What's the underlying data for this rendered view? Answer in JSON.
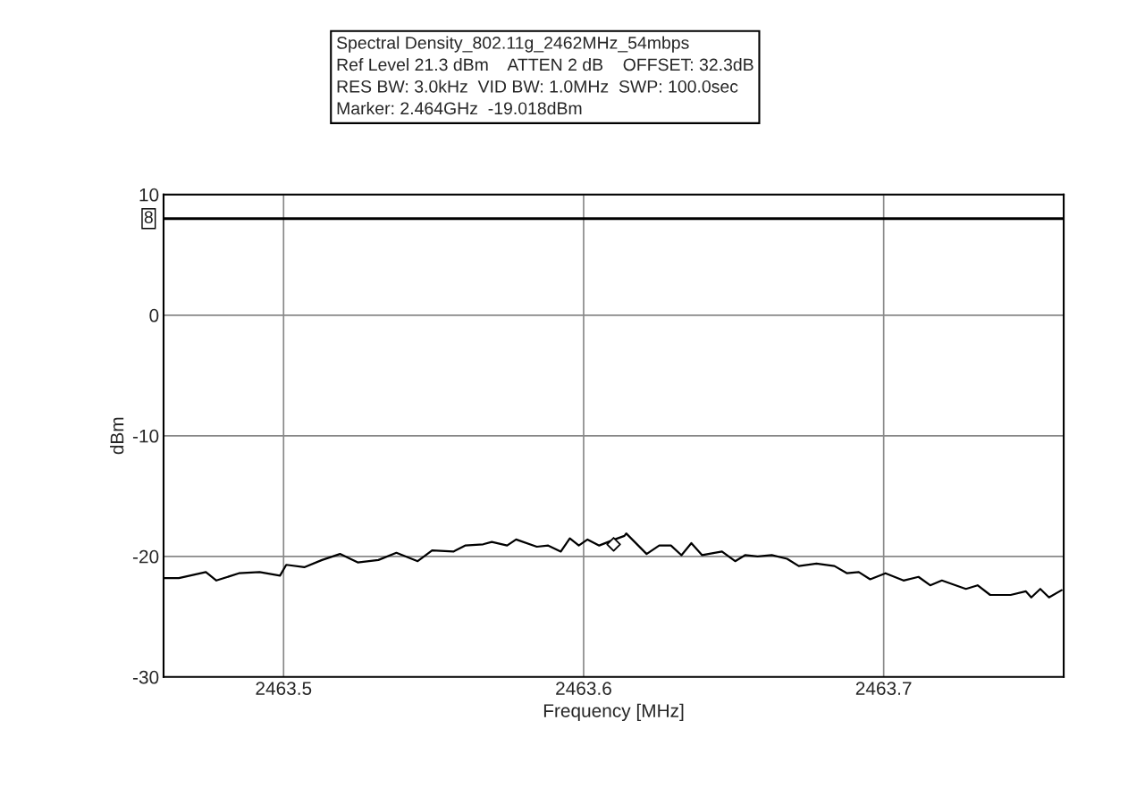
{
  "chart_data": {
    "type": "line",
    "title": "Spectral Density_802.11g_2462MHz_54mbps",
    "annotations": [
      "Ref Level 21.3 dBm    ATTEN 2 dB    OFFSET: 32.3dB",
      "RES BW: 3.0kHz  VID BW: 1.0MHz  SWP: 100.0sec",
      "Marker: 2.464GHz  -19.018dBm"
    ],
    "xlabel": "Frequency [MHz]",
    "ylabel": "dBm",
    "xlim": [
      2463.46,
      2463.76
    ],
    "xticks": [
      2463.5,
      2463.6,
      2463.7
    ],
    "ylim": [
      -30,
      10
    ],
    "yticks": [
      -30,
      -20,
      -10,
      0,
      10
    ],
    "grid": true,
    "line_style": "solid",
    "ref_lines": [
      {
        "axis": "y",
        "value": 8,
        "label": "8",
        "color": "#000000"
      }
    ],
    "series": [
      {
        "color": "#000000",
        "x": [
          2463.46,
          2463.4651,
          2463.4741,
          2463.4776,
          2463.4851,
          2463.492,
          2463.4988,
          2463.5009,
          2463.5069,
          2463.5128,
          2463.5188,
          2463.5247,
          2463.5316,
          2463.5376,
          2463.5447,
          2463.5495,
          2463.5566,
          2463.5605,
          2463.5665,
          2463.5694,
          2463.5745,
          2463.5775,
          2463.5844,
          2463.5882,
          2463.5924,
          2463.5954,
          2463.5984,
          2463.6013,
          2463.6052,
          2463.6103,
          2463.6136,
          2463.6142,
          2463.621,
          2463.6252,
          2463.6291,
          2463.6326,
          2463.6359,
          2463.6395,
          2463.6461,
          2463.6505,
          2463.6538,
          2463.658,
          2463.6627,
          2463.6678,
          2463.6717,
          2463.6776,
          2463.6836,
          2463.6878,
          2463.6917,
          2463.6955,
          2463.7006,
          2463.7066,
          2463.7116,
          2463.7155,
          2463.7194,
          2463.7274,
          2463.7313,
          2463.7355,
          2463.7423,
          2463.7474,
          2463.7492,
          2463.7522,
          2463.7551,
          2463.7593
        ],
        "values": [
          -21.8,
          -21.8,
          -21.3,
          -22.0,
          -21.4,
          -21.3,
          -21.6,
          -20.7,
          -20.9,
          -20.3,
          -19.8,
          -20.5,
          -20.3,
          -19.7,
          -20.4,
          -19.5,
          -19.6,
          -19.1,
          -19.0,
          -18.8,
          -19.1,
          -18.6,
          -19.2,
          -19.1,
          -19.6,
          -18.5,
          -19.1,
          -18.6,
          -19.1,
          -18.6,
          -18.3,
          -18.1,
          -19.8,
          -19.1,
          -19.1,
          -19.9,
          -18.9,
          -19.9,
          -19.6,
          -20.4,
          -19.9,
          -20.0,
          -19.9,
          -20.2,
          -20.8,
          -20.6,
          -20.8,
          -21.4,
          -21.3,
          -21.9,
          -21.4,
          -22.0,
          -21.7,
          -22.4,
          -22.0,
          -22.7,
          -22.4,
          -23.2,
          -23.2,
          -22.9,
          -23.4,
          -22.7,
          -23.4,
          -22.8
        ]
      },
      {
        "type": "scatter",
        "color": "#000000",
        "marker": "diamond",
        "x": [
          2463.61
        ],
        "values": [
          -19.0
        ]
      }
    ]
  }
}
